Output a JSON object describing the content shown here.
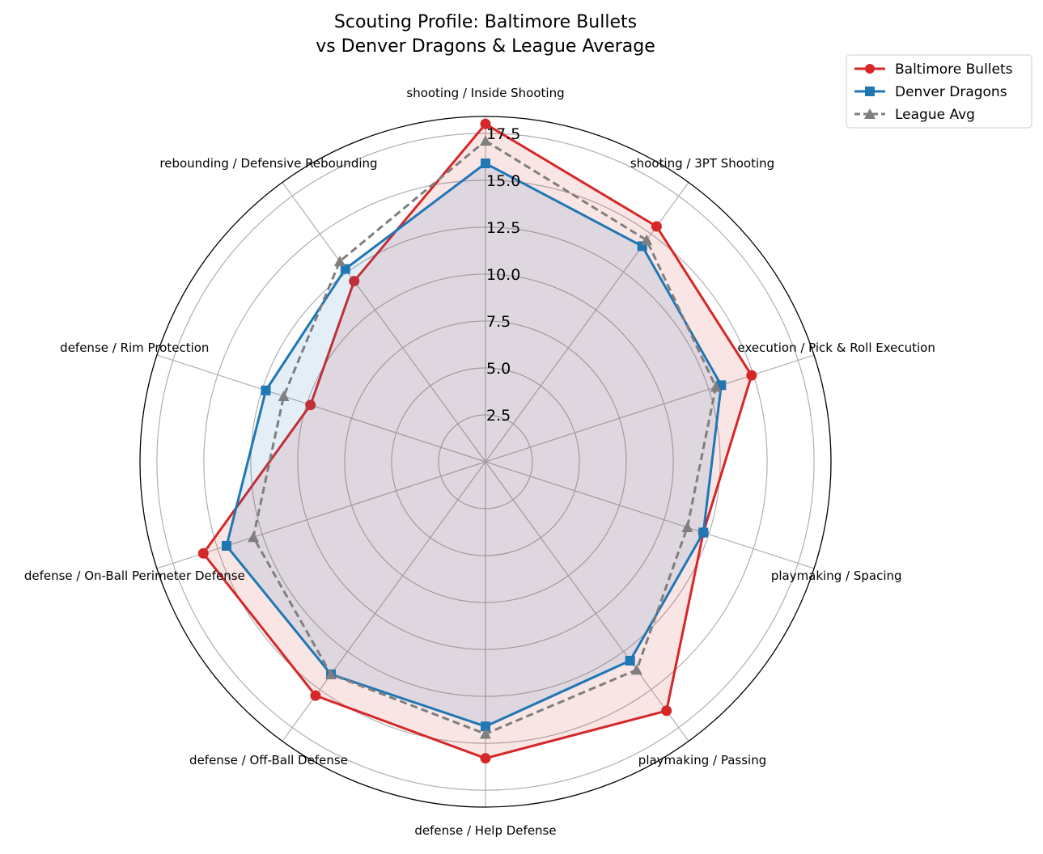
{
  "chart_data": {
    "type": "radar",
    "title": "Scouting Profile: Baltimore Bullets\nvs Denver Dragons & League Average",
    "title_lines": [
      "Scouting Profile: Baltimore Bullets",
      "vs Denver Dragons & League Average"
    ],
    "categories": [
      "shooting / Inside Shooting",
      "shooting / 3PT Shooting",
      "execution / Pick & Roll Execution",
      "playmaking / Spacing",
      "playmaking / Passing",
      "defense / Help Defense",
      "defense / Off-Ball Defense",
      "defense / On-Ball Perimeter Defense",
      "defense / Rim Protection",
      "rebounding / Defensive Rebounding"
    ],
    "radial_ticks": [
      "2.5",
      "5.0",
      "7.5",
      "10.0",
      "12.5",
      "15.0",
      "17.5"
    ],
    "rlim": [
      0,
      18.4
    ],
    "grid": true,
    "legend_position": "top-right",
    "series": [
      {
        "name": "Baltimore Bullets",
        "color": "#d62728",
        "marker": "circle",
        "linestyle": "solid",
        "fill": true,
        "values": [
          18.0,
          15.5,
          14.9,
          12.2,
          16.4,
          15.8,
          15.4,
          15.8,
          9.8,
          11.9
        ]
      },
      {
        "name": "Denver Dragons",
        "color": "#1f77b4",
        "marker": "square",
        "linestyle": "solid",
        "fill": true,
        "values": [
          15.9,
          14.2,
          13.2,
          12.2,
          13.1,
          14.1,
          14.0,
          14.5,
          12.3,
          12.7
        ]
      },
      {
        "name": "League Avg",
        "color": "#7f7f7f",
        "marker": "triangle",
        "linestyle": "dashed",
        "fill": false,
        "values": [
          17.1,
          14.6,
          12.9,
          11.3,
          13.7,
          14.5,
          14.0,
          13.0,
          11.3,
          13.2
        ]
      }
    ]
  }
}
